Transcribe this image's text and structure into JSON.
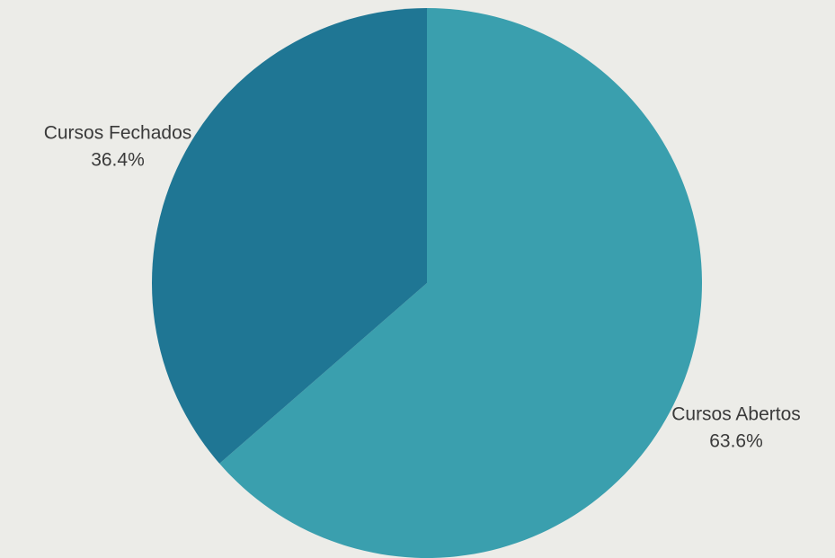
{
  "chart_data": {
    "type": "pie",
    "title": "",
    "start_angle": "12 o'clock",
    "direction": "clockwise",
    "legend": "none",
    "labels_position": "outside",
    "slices": [
      {
        "label": "Cursos Abertos",
        "value": 63.6,
        "value_label": "63.6%",
        "color": "#3a9fae"
      },
      {
        "label": "Cursos Fechados",
        "value": 36.4,
        "value_label": "36.4%",
        "color": "#1f7694"
      }
    ]
  },
  "colors": {
    "background": "#ecece8",
    "label_text": "#3a3a3a"
  }
}
